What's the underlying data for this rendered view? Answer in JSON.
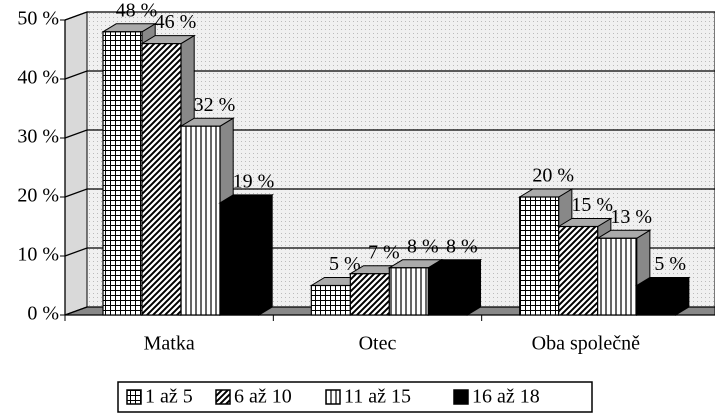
{
  "chart_data": {
    "type": "bar3d",
    "categories": [
      "Matka",
      "Otec",
      "Oba společně"
    ],
    "series": [
      {
        "name": "1 až 5",
        "color": "#ffffff",
        "pattern": "grid",
        "values": [
          48,
          5,
          20
        ],
        "value_labels": [
          "48 %",
          "5 %",
          "20 %"
        ]
      },
      {
        "name": "6 až 10",
        "color": "#ffffff",
        "pattern": "diagonal",
        "values": [
          46,
          7,
          15
        ],
        "value_labels": [
          "46 %",
          "7 %",
          "15 %"
        ]
      },
      {
        "name": "11 až 15",
        "color": "#ffffff",
        "pattern": "vertical",
        "values": [
          32,
          8,
          13
        ],
        "value_labels": [
          "32 %",
          "8 %",
          "13 %"
        ]
      },
      {
        "name": "16 až 18",
        "color": "#000000",
        "pattern": "solid",
        "values": [
          19,
          8,
          5
        ],
        "value_labels": [
          "19 %",
          "8 %",
          "5 %"
        ]
      }
    ],
    "ylim": [
      0,
      50
    ],
    "yticks": [
      {
        "value": 0,
        "label": "0 %"
      },
      {
        "value": 10,
        "label": "10 %"
      },
      {
        "value": 20,
        "label": "20 %"
      },
      {
        "value": 30,
        "label": "30 %"
      },
      {
        "value": 40,
        "label": "40 %"
      },
      {
        "value": 50,
        "label": "50 %"
      }
    ],
    "grid": true,
    "legend": "bottom"
  }
}
